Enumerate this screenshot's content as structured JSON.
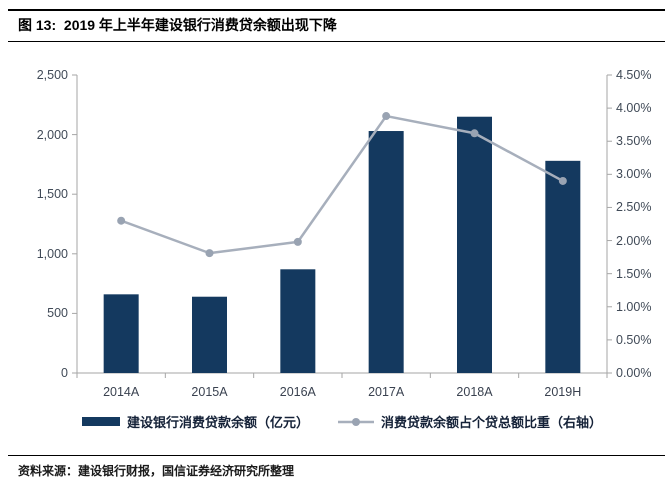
{
  "header": {
    "title": "图 13:  2019 年上半年建设银行消费贷余额出现下降"
  },
  "footer": {
    "source": "资料来源：建设银行财报，国信证券经济研究所整理"
  },
  "legend": {
    "bar_label": "建设银行消费贷款余额（亿元）",
    "line_label": "消费贷款余额占个贷总额比重（右轴）"
  },
  "colors": {
    "bar": "#14395F",
    "line": "#A7AFBC",
    "marker": "#99A3B2",
    "axis": "#A6A6A6",
    "tick_text": "#404A57"
  },
  "chart_data": {
    "type": "bar+line",
    "title": "2019 年上半年建设银行消费贷余额出现下降",
    "categories": [
      "2014A",
      "2015A",
      "2016A",
      "2017A",
      "2018A",
      "2019H"
    ],
    "series": [
      {
        "name": "建设银行消费贷款余额（亿元）",
        "type": "bar",
        "axis": "left",
        "values": [
          660,
          640,
          870,
          2030,
          2150,
          1780
        ]
      },
      {
        "name": "消费贷款余额占个贷总额比重（右轴）",
        "type": "line",
        "axis": "right",
        "values": [
          2.3,
          1.81,
          1.98,
          3.88,
          3.62,
          2.9
        ]
      }
    ],
    "left_axis": {
      "min": 0,
      "max": 2500,
      "ticks": [
        {
          "value": 0,
          "label": "0"
        },
        {
          "value": 500,
          "label": "500"
        },
        {
          "value": 1000,
          "label": "1,000"
        },
        {
          "value": 1500,
          "label": "1,500"
        },
        {
          "value": 2000,
          "label": "2,000"
        },
        {
          "value": 2500,
          "label": "2,500"
        }
      ]
    },
    "right_axis": {
      "min": 0,
      "max": 4.5,
      "ticks": [
        {
          "value": 0.0,
          "label": "0.00%"
        },
        {
          "value": 0.5,
          "label": "0.50%"
        },
        {
          "value": 1.0,
          "label": "1.00%"
        },
        {
          "value": 1.5,
          "label": "1.50%"
        },
        {
          "value": 2.0,
          "label": "2.00%"
        },
        {
          "value": 2.5,
          "label": "2.50%"
        },
        {
          "value": 3.0,
          "label": "3.00%"
        },
        {
          "value": 3.5,
          "label": "3.50%"
        },
        {
          "value": 4.0,
          "label": "4.00%"
        },
        {
          "value": 4.5,
          "label": "4.50%"
        }
      ]
    },
    "legend_position": "bottom",
    "grid": false
  }
}
